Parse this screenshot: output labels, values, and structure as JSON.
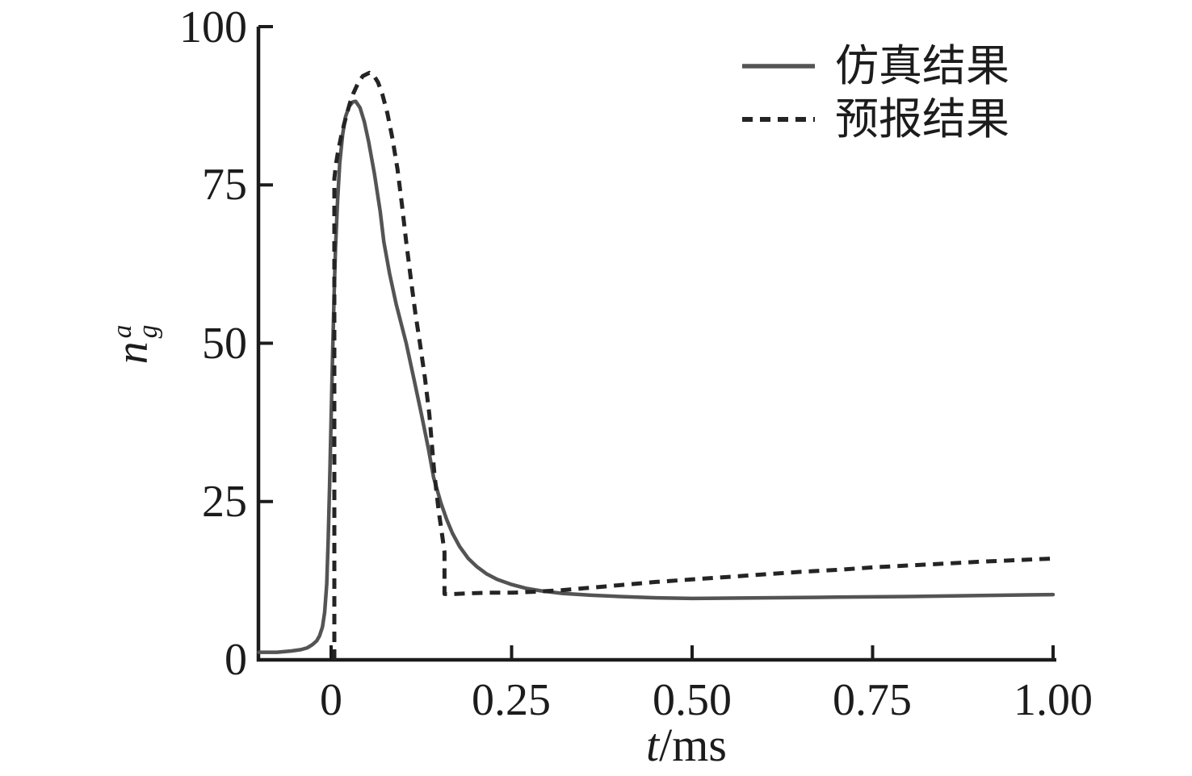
{
  "figure": {
    "background": "#ffffff",
    "axis_color": "#1c1c1c",
    "text_color": "#1c1c1c"
  },
  "chart_data": {
    "type": "line",
    "title": "",
    "xlabel": "t/ms",
    "xlabel_parts": {
      "variable": "t",
      "unit_suffix": "/ms"
    },
    "ylabel": "n_g^a",
    "ylabel_parts": {
      "base": "n",
      "superscript": "a",
      "subscript": "g"
    },
    "xlim": [
      -0.1,
      1.0
    ],
    "ylim": [
      0,
      100
    ],
    "grid": false,
    "x_ticks": [
      0,
      0.25,
      0.5,
      0.75,
      1.0
    ],
    "x_tick_labels": [
      "0",
      "0.25",
      "0.50",
      "0.75",
      "1.00"
    ],
    "y_ticks": [
      0,
      25,
      50,
      75,
      100
    ],
    "y_tick_labels": [
      "0",
      "25",
      "50",
      "75",
      "100"
    ],
    "legend": {
      "position": "top-right",
      "frame": false,
      "entries": [
        {
          "label": "仿真结果",
          "line_style": "solid",
          "color": "#545454"
        },
        {
          "label": "预报结果",
          "line_style": "dashed",
          "color": "#242424"
        }
      ]
    },
    "series": [
      {
        "name": "仿真结果",
        "line_style": "solid",
        "color": "#545454",
        "points": [
          [
            -0.1,
            1.2
          ],
          [
            -0.075,
            1.2
          ],
          [
            -0.055,
            1.4
          ],
          [
            -0.042,
            1.6
          ],
          [
            -0.033,
            1.9
          ],
          [
            -0.026,
            2.4
          ],
          [
            -0.02,
            3.0
          ],
          [
            -0.016,
            3.8
          ],
          [
            -0.012,
            5.2
          ],
          [
            -0.009,
            7.5
          ],
          [
            -0.006,
            12
          ],
          [
            -0.004,
            19
          ],
          [
            -0.002,
            28
          ],
          [
            0.0,
            38
          ],
          [
            0.002,
            48
          ],
          [
            0.004,
            57
          ],
          [
            0.006,
            65
          ],
          [
            0.009,
            72.5
          ],
          [
            0.012,
            78.5
          ],
          [
            0.016,
            83
          ],
          [
            0.02,
            85.8
          ],
          [
            0.025,
            87.4
          ],
          [
            0.03,
            88.1
          ],
          [
            0.034,
            88.2
          ],
          [
            0.04,
            87.2
          ],
          [
            0.046,
            85
          ],
          [
            0.052,
            81.8
          ],
          [
            0.06,
            76.8
          ],
          [
            0.068,
            70.8
          ],
          [
            0.073,
            66
          ],
          [
            0.081,
            61
          ],
          [
            0.09,
            56.2
          ],
          [
            0.104,
            50
          ],
          [
            0.115,
            44.2
          ],
          [
            0.125,
            38.8
          ],
          [
            0.135,
            33.2
          ],
          [
            0.142,
            28.8
          ],
          [
            0.152,
            24.8
          ],
          [
            0.16,
            22.2
          ],
          [
            0.168,
            20
          ],
          [
            0.178,
            17.9
          ],
          [
            0.19,
            16
          ],
          [
            0.202,
            14.7
          ],
          [
            0.215,
            13.6
          ],
          [
            0.23,
            12.7
          ],
          [
            0.25,
            11.9
          ],
          [
            0.27,
            11.3
          ],
          [
            0.29,
            10.9
          ],
          [
            0.32,
            10.5
          ],
          [
            0.36,
            10.2
          ],
          [
            0.4,
            10.0
          ],
          [
            0.45,
            9.8
          ],
          [
            0.5,
            9.7
          ],
          [
            0.55,
            9.75
          ],
          [
            0.6,
            9.8
          ],
          [
            0.7,
            9.9
          ],
          [
            0.8,
            10.0
          ],
          [
            0.9,
            10.15
          ],
          [
            1.0,
            10.3
          ]
        ]
      },
      {
        "name": "预报结果",
        "line_style": "dashed",
        "color": "#242424",
        "points": [
          [
            0.0045,
            0
          ],
          [
            0.0045,
            76
          ],
          [
            0.007,
            78.5
          ],
          [
            0.01,
            80.5
          ],
          [
            0.014,
            82.7
          ],
          [
            0.018,
            84.6
          ],
          [
            0.022,
            86.3
          ],
          [
            0.026,
            87.9
          ],
          [
            0.031,
            89.5
          ],
          [
            0.037,
            91
          ],
          [
            0.044,
            92.2
          ],
          [
            0.053,
            92.7
          ],
          [
            0.059,
            92.3
          ],
          [
            0.065,
            91.2
          ],
          [
            0.071,
            89.3
          ],
          [
            0.078,
            86.3
          ],
          [
            0.085,
            82.3
          ],
          [
            0.092,
            77.5
          ],
          [
            0.098,
            72
          ],
          [
            0.104,
            66
          ],
          [
            0.111,
            59.7
          ],
          [
            0.117,
            54.5
          ],
          [
            0.123,
            50
          ],
          [
            0.13,
            44.5
          ],
          [
            0.136,
            38.8
          ],
          [
            0.143,
            29.5
          ],
          [
            0.149,
            23.5
          ],
          [
            0.154,
            19.5
          ],
          [
            0.157,
            17
          ],
          [
            0.157,
            10.4
          ],
          [
            0.17,
            10.4
          ],
          [
            0.19,
            10.5
          ],
          [
            0.215,
            10.6
          ],
          [
            0.25,
            10.6
          ],
          [
            0.27,
            10.7
          ],
          [
            0.29,
            10.8
          ],
          [
            0.32,
            11.0
          ],
          [
            0.35,
            11.3
          ],
          [
            0.4,
            11.8
          ],
          [
            0.45,
            12.3
          ],
          [
            0.5,
            12.7
          ],
          [
            0.55,
            13.1
          ],
          [
            0.6,
            13.5
          ],
          [
            0.65,
            13.9
          ],
          [
            0.7,
            14.2
          ],
          [
            0.75,
            14.6
          ],
          [
            0.8,
            14.9
          ],
          [
            0.85,
            15.2
          ],
          [
            0.9,
            15.5
          ],
          [
            0.95,
            15.75
          ],
          [
            1.0,
            16.0
          ]
        ]
      }
    ]
  }
}
